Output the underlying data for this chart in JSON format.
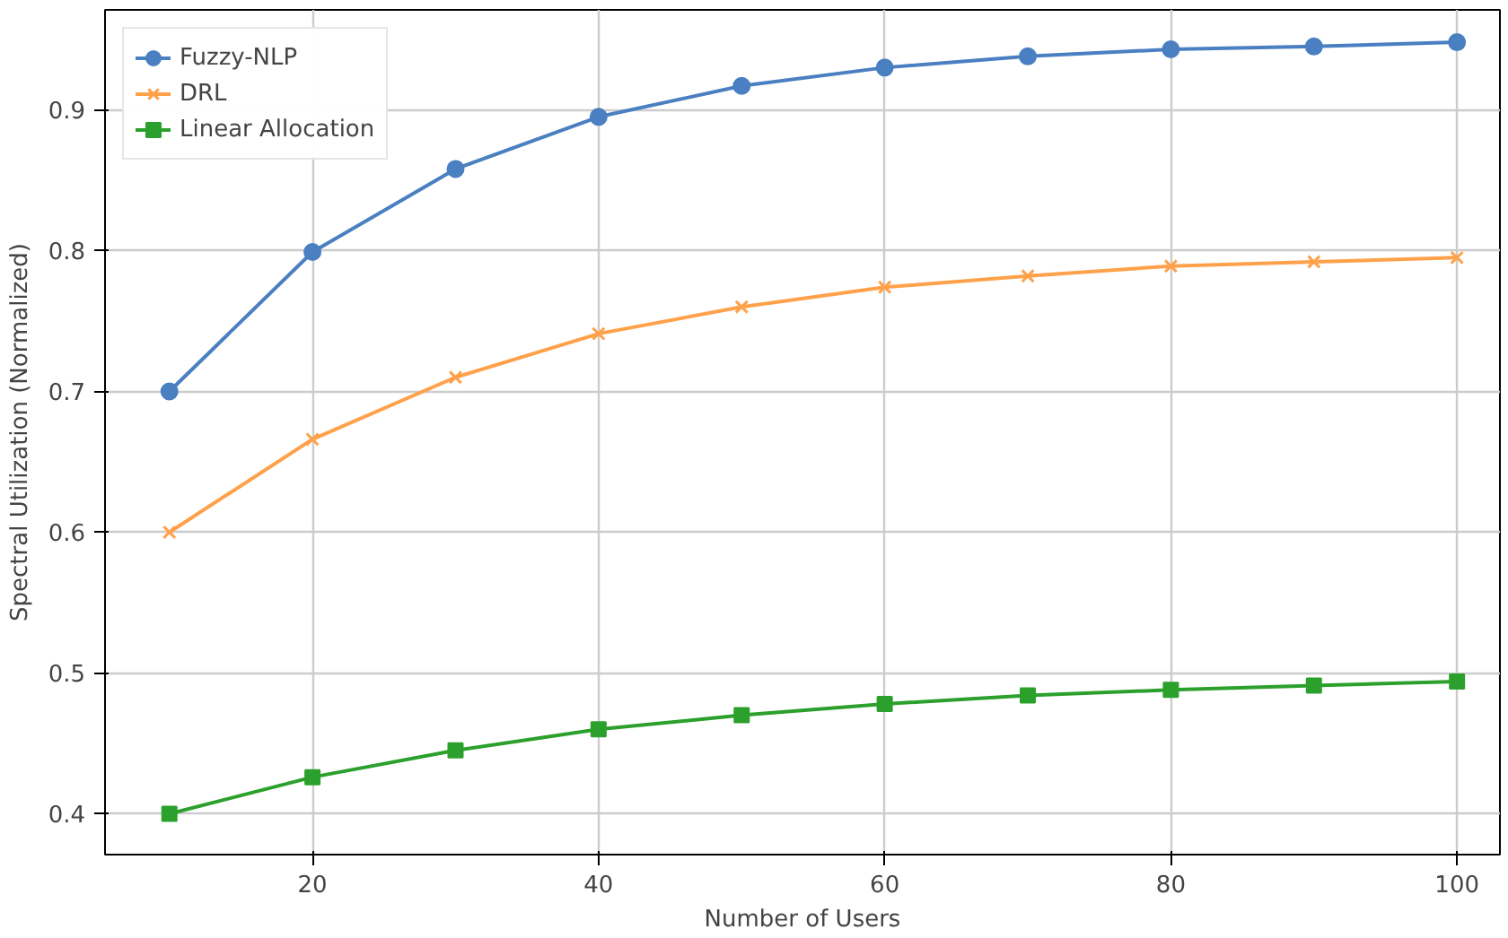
{
  "chart_data": {
    "type": "line",
    "xlabel": "Number of Users",
    "ylabel": "Spectral Utilization (Normalized)",
    "x": [
      10,
      20,
      30,
      40,
      50,
      60,
      70,
      80,
      90,
      100
    ],
    "series": [
      {
        "name": "Fuzzy-NLP",
        "color": "#4a7fc1",
        "marker": "circle",
        "values": [
          0.7,
          0.799,
          0.858,
          0.895,
          0.917,
          0.93,
          0.938,
          0.943,
          0.945,
          0.948
        ]
      },
      {
        "name": "DRL",
        "color": "#ffa14a",
        "marker": "cross",
        "values": [
          0.6,
          0.666,
          0.71,
          0.741,
          0.76,
          0.774,
          0.782,
          0.789,
          0.792,
          0.795
        ]
      },
      {
        "name": "Linear Allocation",
        "color": "#2ca02c",
        "marker": "square",
        "values": [
          0.4,
          0.426,
          0.445,
          0.46,
          0.47,
          0.478,
          0.484,
          0.488,
          0.491,
          0.494
        ]
      }
    ],
    "xlim": [
      5.5,
      103
    ],
    "ylim": [
      0.371,
      0.971
    ],
    "xticks": [
      20,
      40,
      60,
      80,
      100
    ],
    "yticks": [
      0.4,
      0.5,
      0.6,
      0.7,
      0.8,
      0.9
    ],
    "grid": true,
    "legend": "top left",
    "line_style": "solid"
  }
}
